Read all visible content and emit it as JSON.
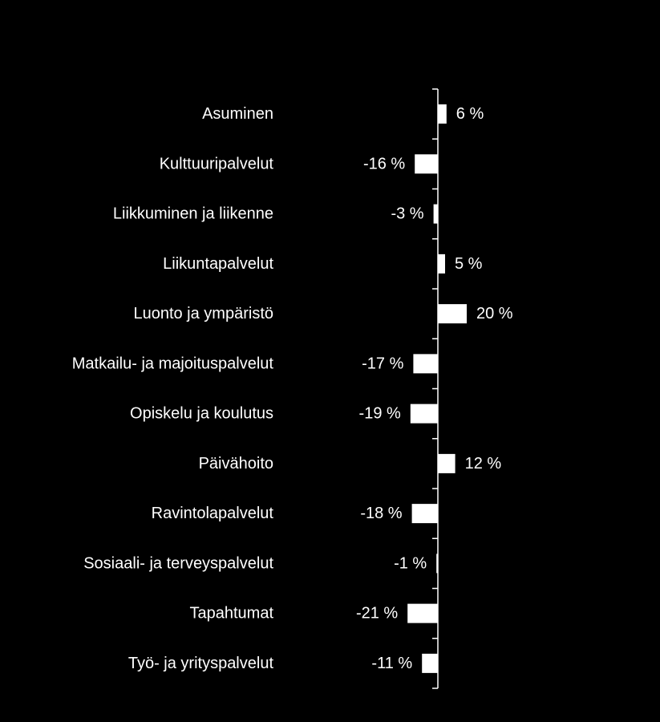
{
  "chart_data": {
    "type": "bar",
    "orientation": "horizontal",
    "categories": [
      "Asuminen",
      "Kulttuuripalvelut",
      "Liikkuminen ja liikenne",
      "Liikuntapalvelut",
      "Luonto ja ympäristö",
      "Matkailu- ja majoituspalvelut",
      "Opiskelu ja koulutus",
      "Päivähoito",
      "Ravintolapalvelut",
      "Sosiaali- ja terveyspalvelut",
      "Tapahtumat",
      "Työ- ja yrityspalvelut"
    ],
    "values": [
      6,
      -16,
      -3,
      5,
      20,
      -17,
      -19,
      12,
      -18,
      -1,
      -21,
      -11
    ],
    "value_labels": [
      "6 %",
      "-16 %",
      "-3 %",
      "5 %",
      "20 %",
      "-17 %",
      "-19 %",
      "12 %",
      "-18 %",
      "-1 %",
      "-21 %",
      "-11 %"
    ],
    "unit": "%",
    "title": "",
    "xlabel": "",
    "ylabel": "",
    "grid": false,
    "legend": "none",
    "colors": {
      "background": "#000000",
      "bar": "#ffffff",
      "text": "#ffffff",
      "axis": "#ffffff"
    }
  }
}
